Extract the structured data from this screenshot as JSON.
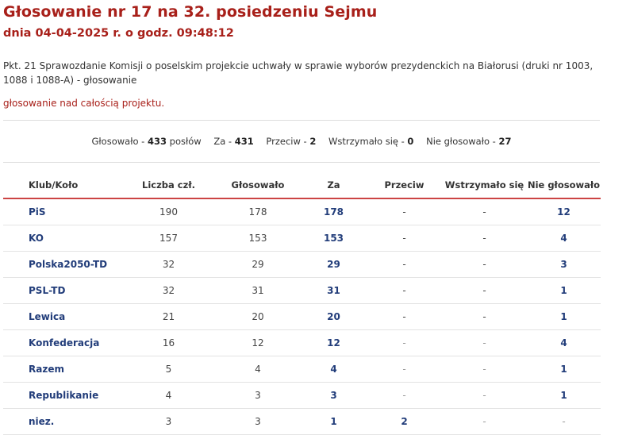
{
  "header": {
    "title": "Głosowanie nr 17 na 32. posiedzeniu Sejmu",
    "subtitle": "dnia 04-04-2025 r. o godz. 09:48:12"
  },
  "description": "Pkt. 21 Sprawozdanie Komisji o poselskim projekcie uchwały w sprawie wyborów prezydenckich na Białorusi (druki nr 1003, 1088 i 1088-A) - głosowanie",
  "vote_type": "głosowanie nad całością projektu.",
  "summary": {
    "voted_label": "Głosowało -",
    "voted_value": "433",
    "voted_unit": "posłów",
    "za_label": "Za -",
    "za_value": "431",
    "przeciw_label": "Przeciw -",
    "przeciw_value": "2",
    "wstrzymalo_label": "Wstrzymało się -",
    "wstrzymalo_value": "0",
    "nie_label": "Nie głosowało -",
    "nie_value": "27"
  },
  "table": {
    "headers": {
      "club": "Klub/Koło",
      "members": "Liczba czł.",
      "voted": "Głosowało",
      "za": "Za",
      "przeciw": "Przeciw",
      "wstrzymalo": "Wstrzymało się",
      "nie": "Nie głosowało"
    },
    "rows": [
      {
        "club": "PiS",
        "members": "190",
        "voted": "178",
        "za": "178",
        "przeciw": "-",
        "wstrzymalo": "-",
        "nie": "12"
      },
      {
        "club": "KO",
        "members": "157",
        "voted": "153",
        "za": "153",
        "przeciw": "-",
        "wstrzymalo": "-",
        "nie": "4"
      },
      {
        "club": "Polska2050-TD",
        "members": "32",
        "voted": "29",
        "za": "29",
        "przeciw": "-",
        "wstrzymalo": "-",
        "nie": "3"
      },
      {
        "club": "PSL-TD",
        "members": "32",
        "voted": "31",
        "za": "31",
        "przeciw": "-",
        "wstrzymalo": "-",
        "nie": "1"
      },
      {
        "club": "Lewica",
        "members": "21",
        "voted": "20",
        "za": "20",
        "przeciw": "-",
        "wstrzymalo": "-",
        "nie": "1"
      },
      {
        "club": "Konfederacja",
        "members": "16",
        "voted": "12",
        "za": "12",
        "przeciw": "-",
        "wstrzymalo": "-",
        "nie": "4"
      },
      {
        "club": "Razem",
        "members": "5",
        "voted": "4",
        "za": "4",
        "przeciw": "-",
        "wstrzymalo": "-",
        "nie": "1"
      },
      {
        "club": "Republikanie",
        "members": "4",
        "voted": "3",
        "za": "3",
        "przeciw": "-",
        "wstrzymalo": "-",
        "nie": "1"
      },
      {
        "club": "niez.",
        "members": "3",
        "voted": "3",
        "za": "1",
        "przeciw": "2",
        "wstrzymalo": "-",
        "nie": "-"
      }
    ]
  },
  "colors": {
    "title_red": "#a8201a",
    "link_blue": "#223d7a",
    "header_rule": "#c44444"
  }
}
